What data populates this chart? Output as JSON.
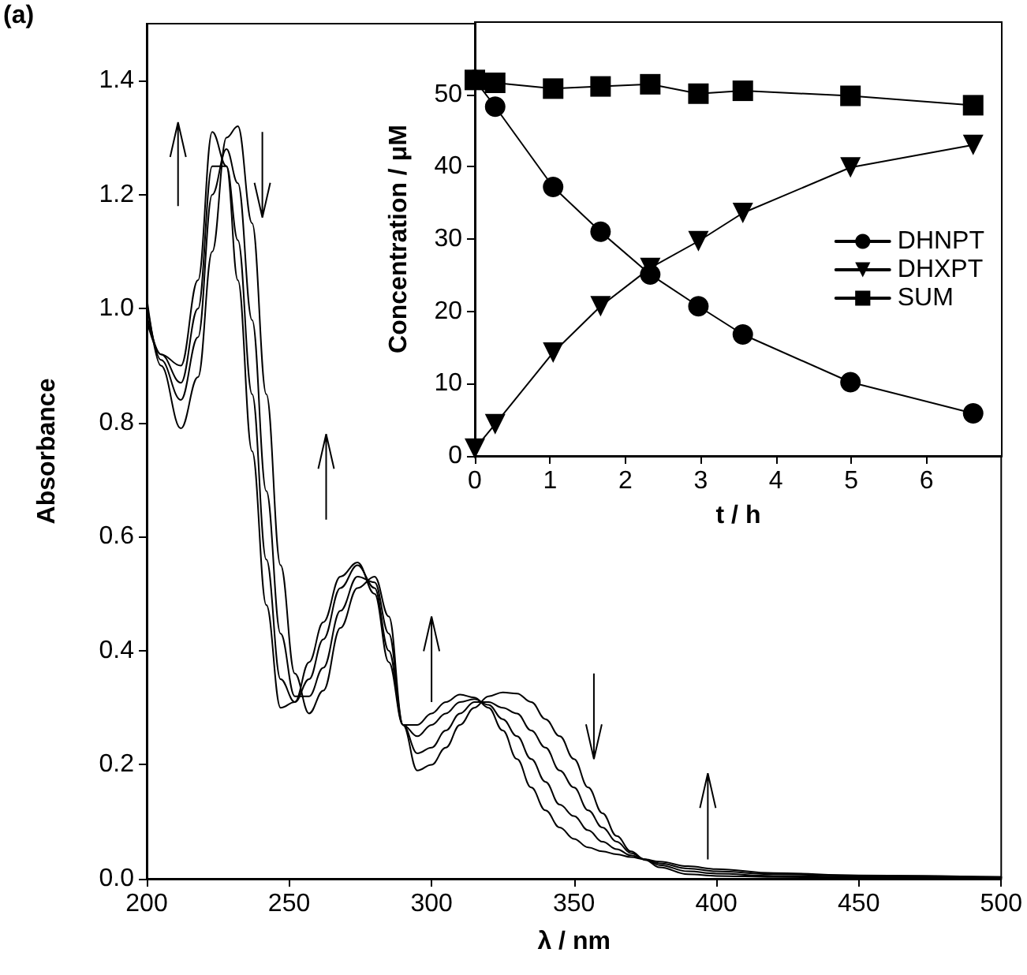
{
  "chart_data": [
    {
      "type": "line",
      "xlabel": "λ / nm",
      "ylabel": "Absorbance",
      "annotations": [
        "(a)"
      ],
      "x": [
        200,
        205,
        212,
        218,
        223,
        228,
        232,
        237,
        242,
        247,
        252,
        257,
        262,
        268,
        274,
        280,
        285,
        290,
        295,
        300,
        305,
        310,
        315,
        320,
        325,
        330,
        335,
        340,
        345,
        350,
        355,
        360,
        365,
        370,
        375,
        380,
        390,
        400,
        420,
        450,
        500
      ],
      "series": [
        {
          "color": "#000000",
          "values": [
            1.02,
            0.9,
            0.79,
            0.88,
            1.1,
            1.3,
            1.32,
            1.15,
            0.85,
            0.55,
            0.36,
            0.29,
            0.33,
            0.44,
            0.51,
            0.53,
            0.46,
            0.27,
            0.19,
            0.2,
            0.23,
            0.27,
            0.3,
            0.32,
            0.327,
            0.325,
            0.31,
            0.28,
            0.25,
            0.21,
            0.16,
            0.115,
            0.075,
            0.048,
            0.033,
            0.02,
            0.008,
            0.005,
            0.003,
            0.002,
            0.001
          ]
        },
        {
          "color": "#000000",
          "values": [
            1.01,
            0.91,
            0.84,
            0.95,
            1.2,
            1.28,
            1.22,
            0.98,
            0.68,
            0.43,
            0.32,
            0.32,
            0.37,
            0.47,
            0.53,
            0.52,
            0.43,
            0.27,
            0.22,
            0.23,
            0.26,
            0.29,
            0.31,
            0.31,
            0.3,
            0.29,
            0.26,
            0.23,
            0.19,
            0.16,
            0.12,
            0.09,
            0.065,
            0.045,
            0.034,
            0.024,
            0.013,
            0.009,
            0.005,
            0.003,
            0.002
          ]
        },
        {
          "color": "#000000",
          "values": [
            0.99,
            0.92,
            0.87,
            1.0,
            1.25,
            1.25,
            1.12,
            0.85,
            0.56,
            0.35,
            0.31,
            0.35,
            0.42,
            0.51,
            0.55,
            0.51,
            0.4,
            0.27,
            0.25,
            0.27,
            0.29,
            0.31,
            0.315,
            0.305,
            0.28,
            0.25,
            0.21,
            0.17,
            0.13,
            0.11,
            0.085,
            0.065,
            0.052,
            0.041,
            0.034,
            0.027,
            0.018,
            0.013,
            0.008,
            0.005,
            0.003
          ]
        },
        {
          "color": "#000000",
          "values": [
            0.98,
            0.92,
            0.9,
            1.05,
            1.31,
            1.25,
            1.05,
            0.75,
            0.48,
            0.3,
            0.31,
            0.38,
            0.45,
            0.53,
            0.555,
            0.5,
            0.38,
            0.27,
            0.27,
            0.29,
            0.31,
            0.323,
            0.318,
            0.3,
            0.26,
            0.21,
            0.16,
            0.12,
            0.09,
            0.07,
            0.055,
            0.048,
            0.043,
            0.038,
            0.034,
            0.03,
            0.022,
            0.017,
            0.01,
            0.006,
            0.003
          ]
        }
      ],
      "xlim": [
        200,
        500
      ],
      "xticks": [
        200,
        250,
        300,
        350,
        400,
        450,
        500
      ],
      "ylim": [
        0,
        1.5
      ],
      "yticks": [
        {
          "value": 0,
          "label": "0.0"
        },
        {
          "value": 0.2,
          "label": "0.2"
        },
        {
          "value": 0.4,
          "label": "0.4"
        },
        {
          "value": 0.6,
          "label": "0.6"
        },
        {
          "value": 0.8,
          "label": "0.8"
        },
        {
          "value": 1,
          "label": "1.0"
        },
        {
          "value": 1.2,
          "label": "1.2"
        },
        {
          "value": 1.4,
          "label": "1.4"
        }
      ],
      "grid": false,
      "legend": false,
      "marker": "none",
      "line_style": "solid"
    },
    {
      "type": "line",
      "xlabel": "t / h",
      "ylabel": "Concentration / μM",
      "x": [
        0,
        0.27,
        1.04,
        1.67,
        2.33,
        2.97,
        3.56,
        4.99,
        6.62
      ],
      "series": [
        {
          "name": "DHNPT",
          "color": "#000000",
          "marker": "circle",
          "values": [
            52.0,
            48.3,
            37.2,
            31.0,
            25.1,
            20.7,
            16.8,
            10.2,
            5.9
          ]
        },
        {
          "name": "DHXPT",
          "color": "#000000",
          "marker": "triangle",
          "values": [
            1.0,
            4.4,
            14.3,
            20.7,
            26.0,
            29.7,
            33.6,
            39.9,
            43.0
          ]
        },
        {
          "name": "SUM",
          "color": "#000000",
          "marker": "square",
          "values": [
            52.0,
            51.6,
            50.8,
            51.1,
            51.4,
            50.1,
            50.5,
            49.8,
            48.5
          ]
        }
      ],
      "xlim": [
        0,
        7
      ],
      "xticks": [
        0,
        1,
        2,
        3,
        4,
        5,
        6
      ],
      "ylim": [
        0,
        60
      ],
      "yticks": [
        0,
        10,
        20,
        30,
        40,
        50
      ],
      "grid": false,
      "legend": "right",
      "line_style": "solid"
    }
  ]
}
